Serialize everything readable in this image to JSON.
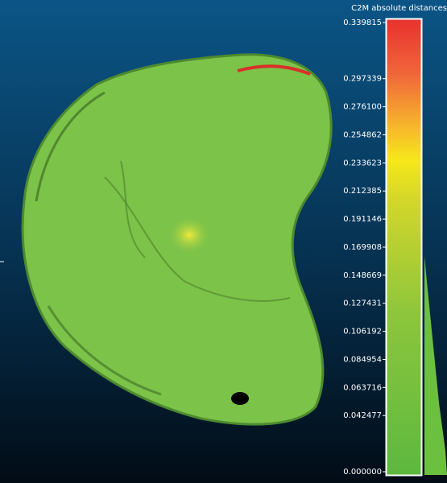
{
  "scale": {
    "title": "C2M absolute distances",
    "ticks": [
      "0.339815",
      "0.297339",
      "0.276100",
      "0.254862",
      "0.233623",
      "0.212385",
      "0.191146",
      "0.169908",
      "0.148669",
      "0.127431",
      "0.106192",
      "0.084954",
      "0.063716",
      "0.042477",
      "0.000000"
    ]
  }
}
